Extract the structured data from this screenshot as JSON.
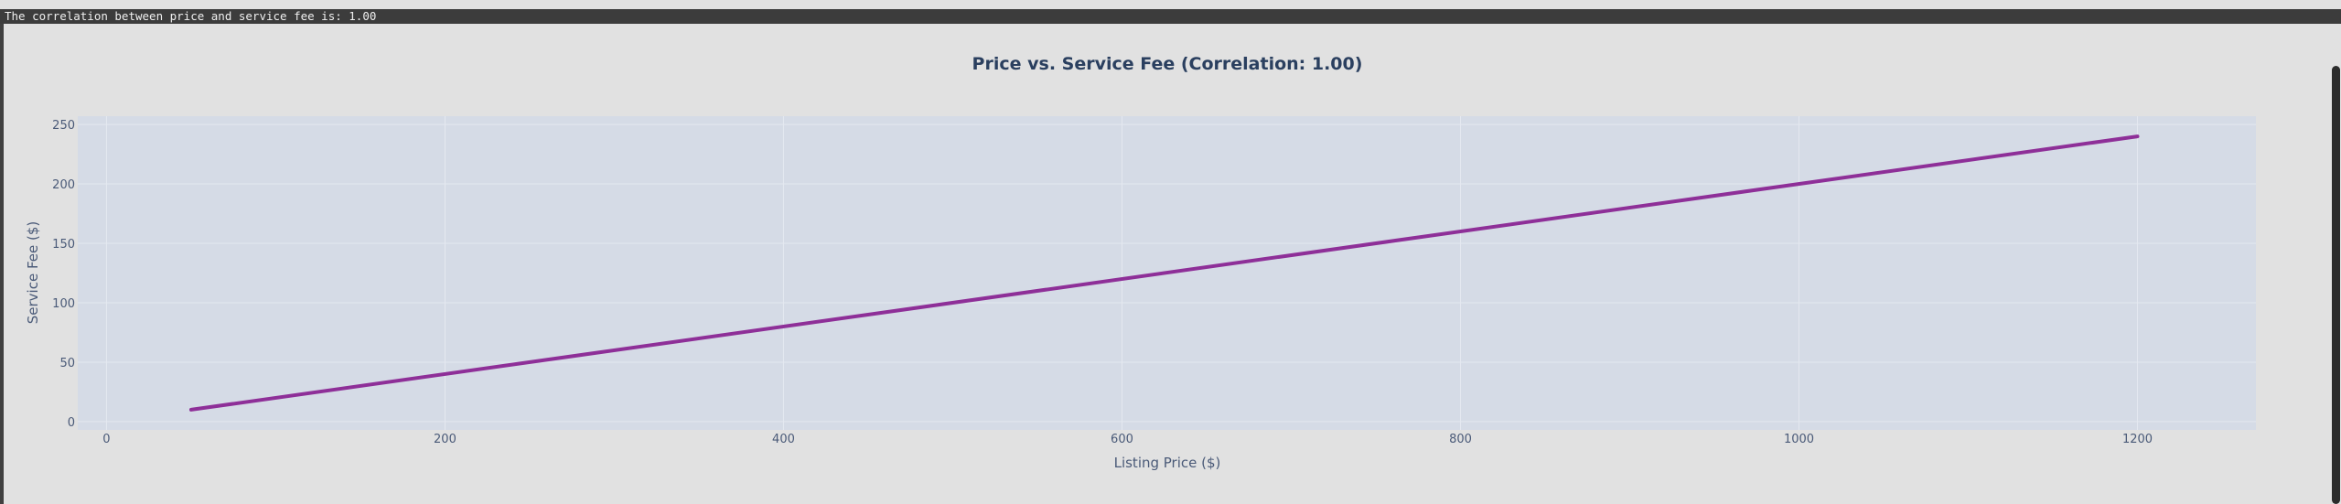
{
  "output": {
    "text": "The correlation between price and service fee is: 1.00"
  },
  "colors": {
    "line": "#8e2f98",
    "plot_bg": "#d5dbe6",
    "grid": "#e4e8f0",
    "page_bg": "#e1e1e1"
  },
  "chart_data": {
    "type": "line",
    "title": "Price vs. Service Fee (Correlation: 1.00)",
    "xlabel": "Listing Price ($)",
    "ylabel": "Service Fee ($)",
    "xlim": [
      -17,
      1270
    ],
    "ylim": [
      -7,
      257
    ],
    "x_ticks": [
      0,
      200,
      400,
      600,
      800,
      1000,
      1200
    ],
    "y_ticks": [
      0,
      50,
      100,
      150,
      200,
      250
    ],
    "grid": true,
    "series": [
      {
        "x": [
          50,
          1200
        ],
        "y": [
          10,
          240
        ]
      }
    ]
  }
}
